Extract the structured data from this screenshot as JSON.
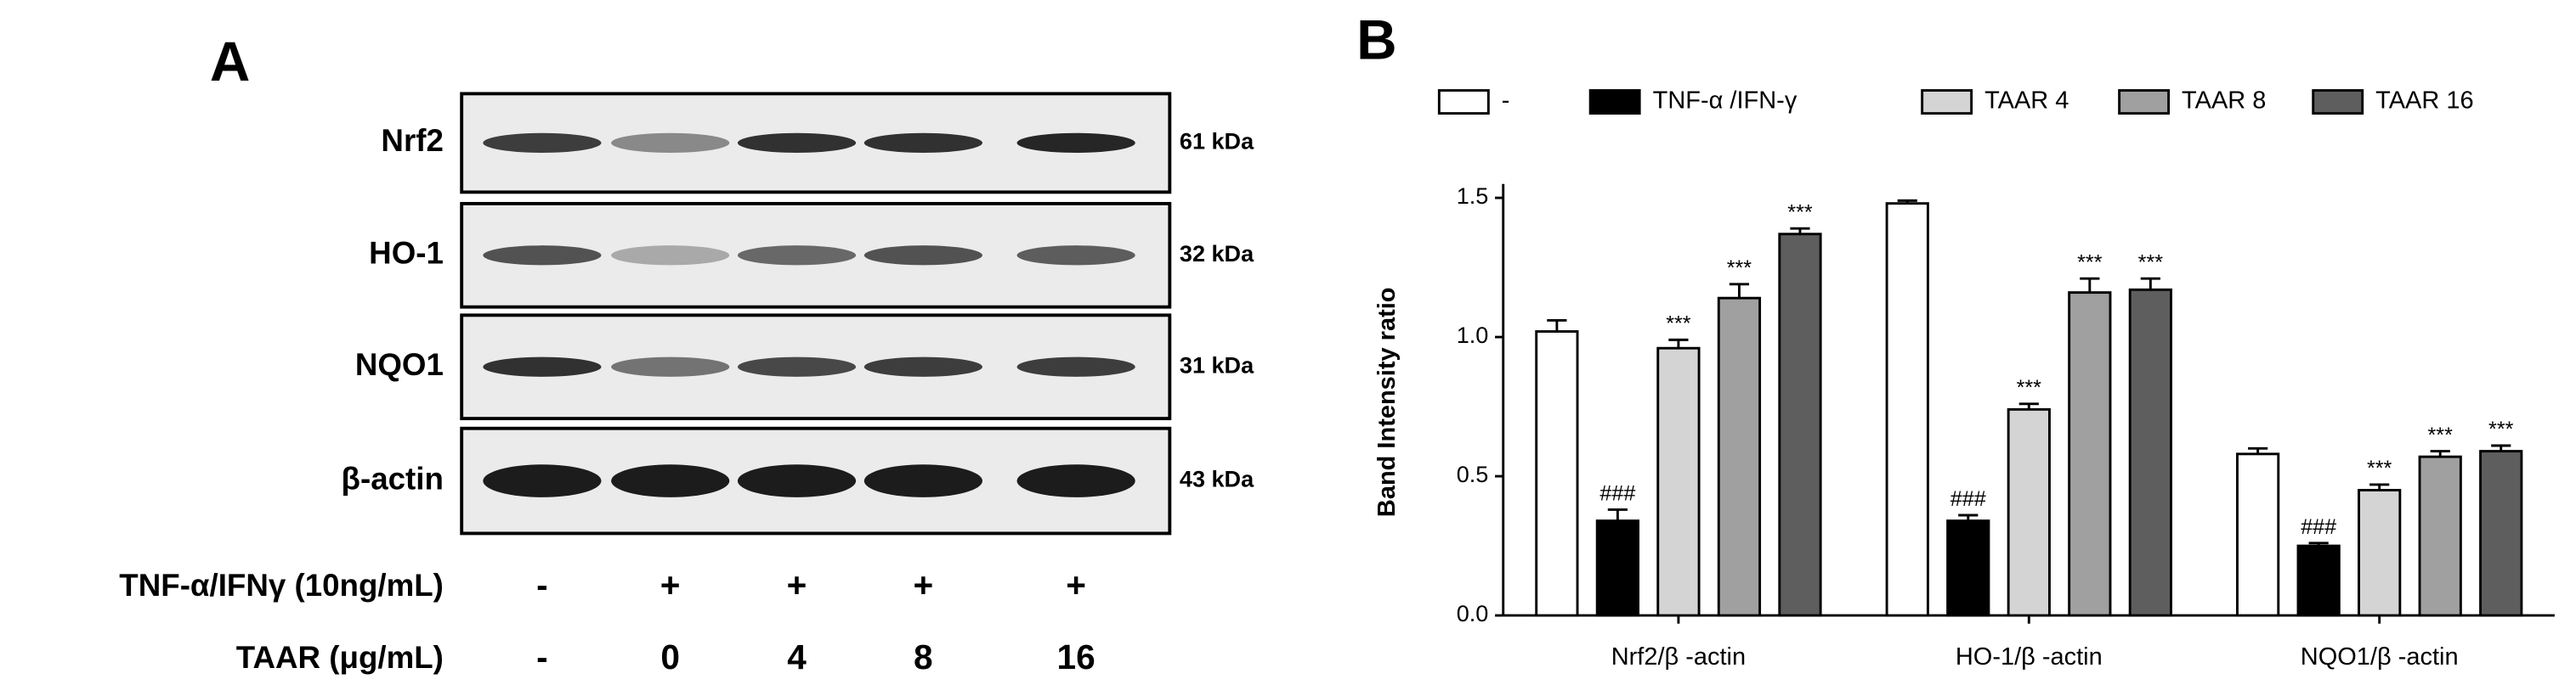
{
  "panel_a": {
    "letter": "A",
    "rows": [
      {
        "label": "Nrf2",
        "size": "61 kDa"
      },
      {
        "label": "HO-1",
        "size": "32 kDa"
      },
      {
        "label": "NQO1",
        "size": "31 kDa"
      },
      {
        "label": "β-actin",
        "size": "43 kDa"
      }
    ],
    "treatments": [
      {
        "label": "TNF-α/IFNγ (10ng/mL)",
        "lanes": [
          "-",
          "+",
          "+",
          "+",
          "+"
        ]
      },
      {
        "label": "TAAR (μg/mL)",
        "lanes": [
          "-",
          "0",
          "4",
          "8",
          "16"
        ]
      }
    ]
  },
  "panel_b": {
    "letter": "B"
  },
  "chart_data": {
    "type": "bar",
    "y_label": "Band Intensity ratio",
    "categories": [
      "Nrf2/β -actin",
      "HO-1/β -actin",
      "NQO1/β -actin"
    ],
    "series": [
      {
        "name": "-",
        "color": "#ffffff",
        "values": [
          1.02,
          1.48,
          0.58
        ],
        "errors": [
          0.04,
          0.01,
          0.02
        ]
      },
      {
        "name": "TNF-α /IFN-γ",
        "color": "#000000",
        "values": [
          0.34,
          0.34,
          0.25
        ],
        "errors": [
          0.04,
          0.02,
          0.01
        ],
        "annotation": "###"
      },
      {
        "name": "TAAR 4",
        "color": "#d4d4d4",
        "values": [
          0.96,
          0.74,
          0.45
        ],
        "errors": [
          0.03,
          0.02,
          0.02
        ],
        "annotation": "***"
      },
      {
        "name": "TAAR 8",
        "color": "#a0a0a0",
        "values": [
          1.14,
          1.16,
          0.57
        ],
        "errors": [
          0.05,
          0.05,
          0.02
        ],
        "annotation": "***"
      },
      {
        "name": "TAAR 16",
        "color": "#5e5e5e",
        "values": [
          1.37,
          1.17,
          0.59
        ],
        "errors": [
          0.02,
          0.04,
          0.02
        ],
        "annotation": "***"
      }
    ],
    "ylim": [
      0,
      1.55
    ],
    "yticks": [
      {
        "value": 0,
        "label": "0.0"
      },
      {
        "value": 0.5,
        "label": "0.5"
      },
      {
        "value": 1,
        "label": "1.0"
      },
      {
        "value": 1.5,
        "label": "1.5"
      }
    ]
  }
}
